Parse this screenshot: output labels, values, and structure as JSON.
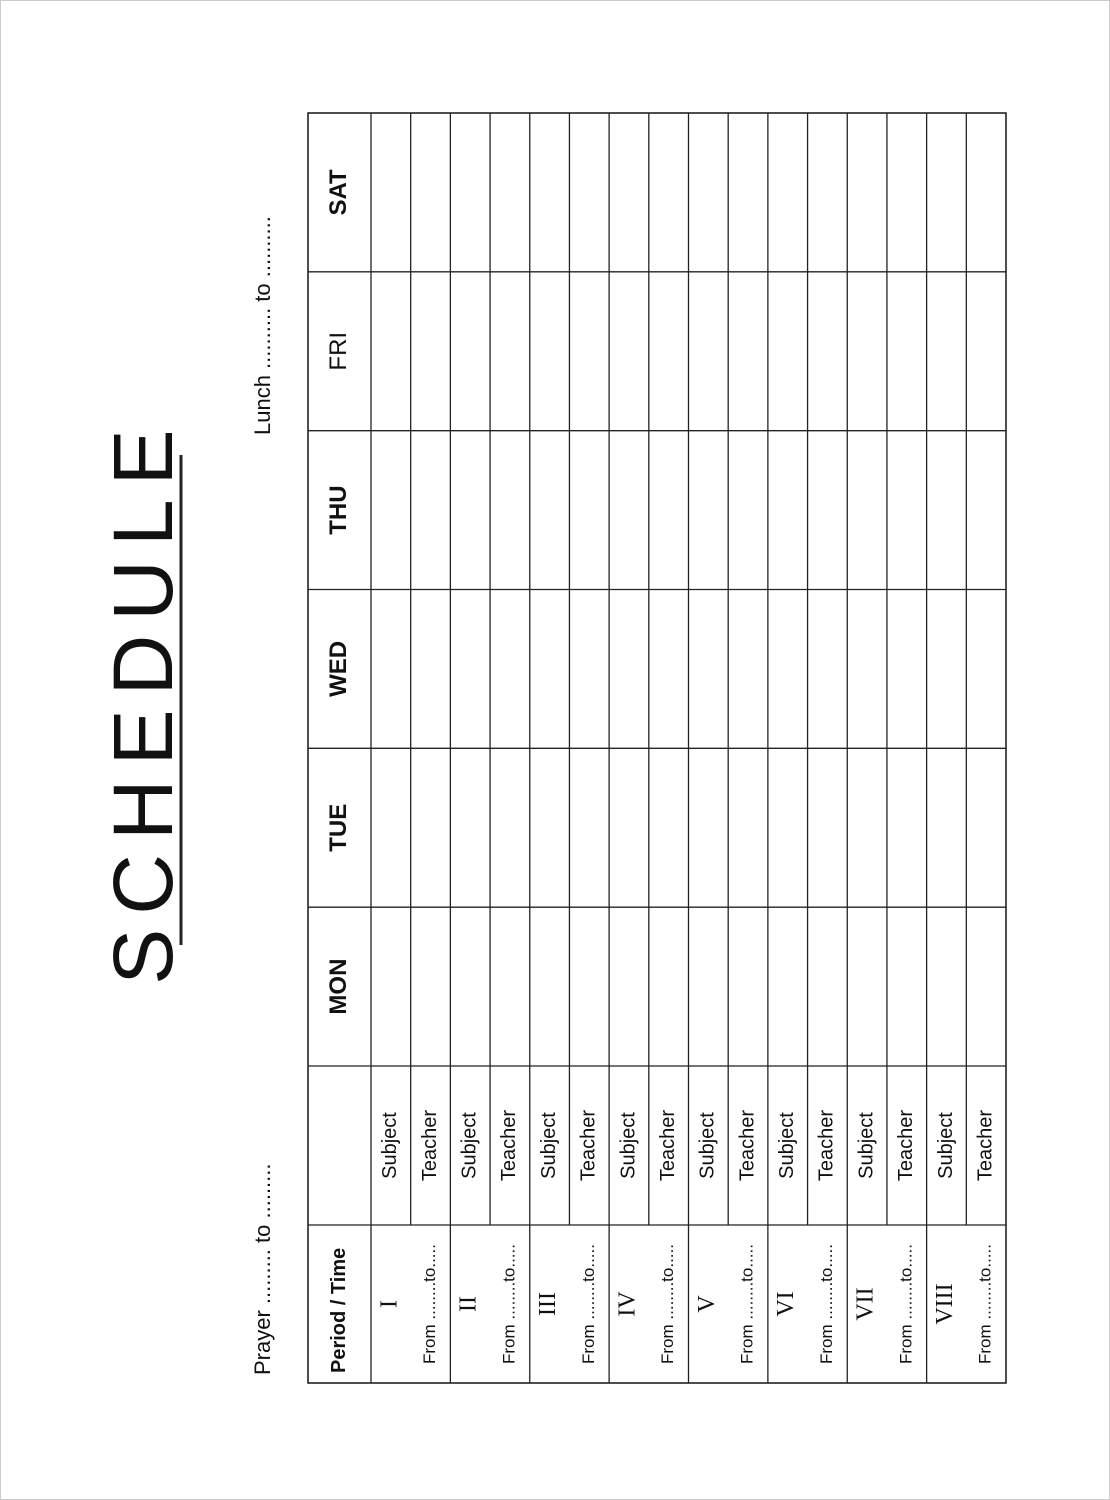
{
  "title": "SCHEDULE",
  "prayer": "Prayer ......... to .........",
  "lunch": "Lunch .......... to ..........",
  "table": {
    "period_header": "Period / Time",
    "days": [
      "MON",
      "TUE",
      "WED",
      "THU",
      "FRI",
      "SAT"
    ],
    "periods": [
      {
        "numeral": "I",
        "time": "From ........to.....",
        "subject": "Subject",
        "teacher": "Teacher"
      },
      {
        "numeral": "II",
        "time": "From ........to.....",
        "subject": "Subject",
        "teacher": "Teacher"
      },
      {
        "numeral": "III",
        "time": "From ........to.....",
        "subject": "Subject",
        "teacher": "Teacher"
      },
      {
        "numeral": "IV",
        "time": "From ........to.....",
        "subject": "Subject",
        "teacher": "Teacher"
      },
      {
        "numeral": "V",
        "time": "From ........to.....",
        "subject": "Subject",
        "teacher": "Teacher"
      },
      {
        "numeral": "VI",
        "time": "From ........to.....",
        "subject": "Subject",
        "teacher": "Teacher"
      },
      {
        "numeral": "VII",
        "time": "From ........to.....",
        "subject": "Subject",
        "teacher": "Teacher"
      },
      {
        "numeral": "VIII",
        "time": "From ........to.....",
        "subject": "Subject",
        "teacher": "Teacher"
      }
    ]
  }
}
